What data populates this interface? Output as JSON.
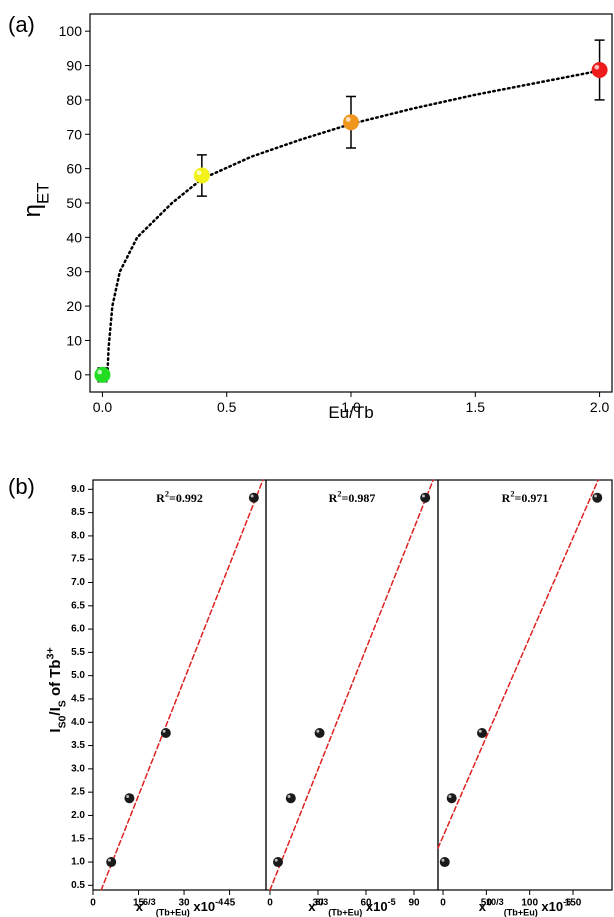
{
  "chart_data": [
    {
      "type": "scatter",
      "panel": "(a)",
      "xlabel": [
        {
          "text": "Eu/Tb"
        }
      ],
      "ylabel": [
        {
          "text": "η"
        },
        {
          "text": "ET",
          "pos": "sub"
        }
      ],
      "x": [
        0,
        0.4,
        1.0,
        2.0
      ],
      "values": [
        0,
        58,
        73.5,
        88.7
      ],
      "errors": [
        2,
        6,
        7.5,
        8.7
      ],
      "colors": [
        "#22dd22",
        "#f2f21a",
        "#f0961e",
        "#ee1c1c"
      ],
      "fit": {
        "x": [
          0.02,
          0.025,
          0.04,
          0.07,
          0.14,
          0.28,
          0.4,
          0.6,
          0.8,
          1.0,
          1.25,
          1.5,
          1.75,
          2.0
        ],
        "values": [
          0,
          8,
          20,
          30,
          40,
          50,
          57,
          63.5,
          68.5,
          73,
          77.5,
          81.5,
          85,
          88.5
        ],
        "color": "#000000",
        "dash": "dotted"
      },
      "xlim": [
        -0.05,
        2.05
      ],
      "ylim": [
        -5,
        105
      ],
      "xticks": [
        {
          "value": 0,
          "label": "0.0"
        },
        0.5,
        {
          "value": 1,
          "label": "1.0"
        },
        1.5,
        {
          "value": 2,
          "label": "2.0"
        }
      ],
      "yticks": [
        0,
        10,
        20,
        30,
        40,
        50,
        60,
        70,
        80,
        90,
        100
      ]
    },
    {
      "type": "scatter",
      "panel": "(b)",
      "xlabel": [
        {
          "text": "x"
        },
        {
          "text": "6/3",
          "pos": "sup"
        },
        {
          "text": "(Tb+Eu)",
          "pos": "sub"
        },
        {
          "text": " x10"
        },
        {
          "text": "-4",
          "pos": "sup"
        }
      ],
      "ylabel": [
        {
          "text": "I"
        },
        {
          "text": "S0",
          "pos": "sub"
        },
        {
          "text": "/I"
        },
        {
          "text": "S",
          "pos": "sub"
        },
        {
          "text": " of Tb"
        },
        {
          "text": "3+",
          "pos": "sup"
        }
      ],
      "annotation": [
        {
          "text": "R"
        },
        {
          "text": "2",
          "pos": "sup"
        },
        {
          "text": "=0.992"
        }
      ],
      "x": [
        6,
        12,
        24,
        53
      ],
      "values": [
        1.0,
        2.37,
        3.77,
        8.82
      ],
      "color": "#1a1a1a",
      "fit": {
        "x": [
          2.7,
          56
        ],
        "values": [
          0.4,
          9.2
        ],
        "color": "#e02020",
        "dash": "dashed"
      },
      "xlim": [
        0,
        57
      ],
      "ylim": [
        0.4,
        9.2
      ],
      "xticks": [
        0,
        15,
        30,
        45
      ],
      "yticks": [
        0.5,
        {
          "value": 1,
          "label": "1.0"
        },
        1.5,
        {
          "value": 2,
          "label": "2.0"
        },
        2.5,
        {
          "value": 3,
          "label": "3.0"
        },
        3.5,
        {
          "value": 4,
          "label": "4.0"
        },
        4.5,
        {
          "value": 5,
          "label": "5.0"
        },
        5.5,
        {
          "value": 6,
          "label": "6.0"
        },
        6.5,
        {
          "value": 7,
          "label": "7.0"
        },
        7.5,
        {
          "value": 8,
          "label": "8.0"
        },
        8.5,
        {
          "value": 9,
          "label": "9.0"
        }
      ]
    },
    {
      "type": "scatter",
      "xlabel": [
        {
          "text": "x"
        },
        {
          "text": "8/3",
          "pos": "sup"
        },
        {
          "text": "(Tb+Eu)",
          "pos": "sub"
        },
        {
          "text": " x10"
        },
        {
          "text": "-5",
          "pos": "sup"
        }
      ],
      "annotation": [
        {
          "text": "R"
        },
        {
          "text": "2",
          "pos": "sup"
        },
        {
          "text": "=0.987"
        }
      ],
      "x": [
        5,
        13,
        31,
        97
      ],
      "values": [
        1.0,
        2.37,
        3.77,
        8.82
      ],
      "color": "#1a1a1a",
      "fit": {
        "x": [
          0,
          102
        ],
        "values": [
          0.4,
          9.2
        ],
        "color": "#e02020",
        "dash": "dashed"
      },
      "xlim": [
        -2.5,
        105
      ],
      "ylim": [
        0.4,
        9.2
      ],
      "xticks": [
        0,
        30,
        60,
        90
      ]
    },
    {
      "type": "scatter",
      "xlabel": [
        {
          "text": "x"
        },
        {
          "text": "10/3",
          "pos": "sup"
        },
        {
          "text": "(Tb+Eu)",
          "pos": "sub"
        },
        {
          "text": " x10"
        },
        {
          "text": "-6",
          "pos": "sup"
        }
      ],
      "annotation": [
        {
          "text": "R"
        },
        {
          "text": "2",
          "pos": "sup"
        },
        {
          "text": "=0.971"
        }
      ],
      "x": [
        2,
        10,
        45,
        178
      ],
      "values": [
        1.0,
        2.37,
        3.77,
        8.82
      ],
      "color": "#1a1a1a",
      "fit": {
        "x": [
          -5.8,
          179
        ],
        "values": [
          1.3,
          9.2
        ],
        "color": "#e02020",
        "dash": "dashed"
      },
      "xlim": [
        -5.8,
        195
      ],
      "ylim": [
        0.4,
        9.2
      ],
      "xticks": [
        0,
        50,
        100,
        150
      ]
    }
  ]
}
